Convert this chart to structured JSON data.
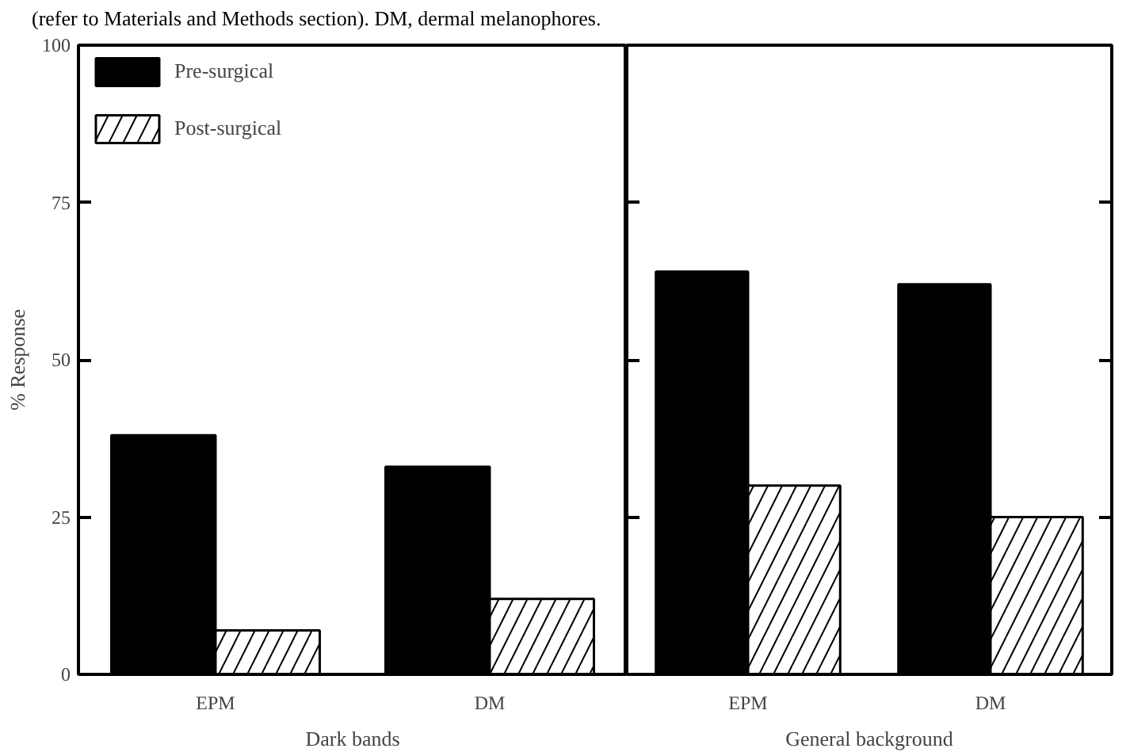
{
  "chart_data": [
    {
      "type": "bar",
      "categories": [
        "EPM",
        "DM"
      ],
      "xlabel": "Dark bands",
      "ylabel": "% Response",
      "ylim": [
        0,
        100
      ],
      "yticks": [
        0,
        25,
        50,
        75,
        100
      ],
      "legend": "top left",
      "grid": false,
      "annotations": [
        "(refer to Materials and Methods section). DM, dermal melanophores."
      ],
      "series": [
        {
          "name": "Pre-surgical",
          "color": "#000000",
          "values": [
            38,
            33
          ]
        },
        {
          "name": "Post-surgical",
          "color": "#ffffff",
          "values": [
            7,
            12
          ]
        }
      ]
    },
    {
      "type": "bar",
      "categories": [
        "EPM",
        "DM"
      ],
      "xlabel": "General background",
      "ylim": [
        0,
        100
      ],
      "yticks": [
        0,
        25,
        50,
        75,
        100
      ],
      "tick_labels": "x",
      "grid": false,
      "series": [
        {
          "color": "#000000",
          "values": [
            64,
            62
          ]
        },
        {
          "color": "#ffffff",
          "values": [
            30,
            25
          ]
        }
      ]
    }
  ]
}
